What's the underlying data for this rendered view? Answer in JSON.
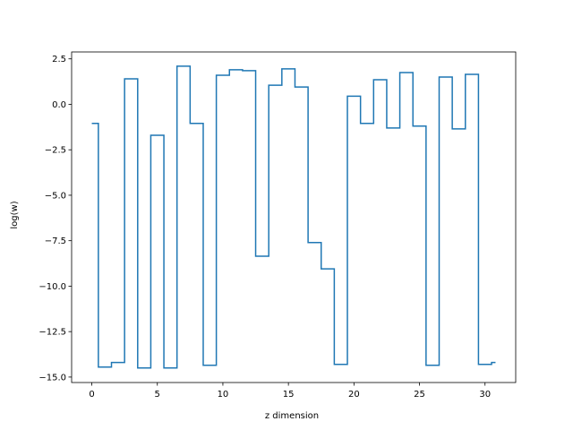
{
  "chart_data": {
    "type": "line",
    "drawstyle": "steps-post",
    "title": "",
    "xlabel": "z dimension",
    "ylabel": "log(w)",
    "xlim": [
      -1.54,
      32.34
    ],
    "ylim": [
      -15.3,
      2.88
    ],
    "grid": false,
    "line_color": "#1f77b4",
    "xticks": [
      0,
      5,
      10,
      15,
      20,
      25,
      30
    ],
    "yticks": [
      2.5,
      0.0,
      -2.5,
      -5.0,
      -7.5,
      -10.0,
      -12.5,
      -15.0
    ],
    "xtick_labels": [
      "0",
      "5",
      "10",
      "15",
      "20",
      "25",
      "30"
    ],
    "ytick_labels": [
      "2.5",
      "0.0",
      "−2.5",
      "−5.0",
      "−7.5",
      "−10.0",
      "−12.5",
      "−15.0"
    ],
    "series": [
      {
        "x": [
          0,
          0.5,
          1.5,
          2.5,
          3.5,
          4.5,
          5.5,
          6.5,
          7.5,
          8.5,
          9.5,
          10.5,
          11.5,
          12.5,
          13.5,
          14.5,
          15.5,
          16.5,
          17.5,
          18.5,
          19.5,
          20.5,
          21.5,
          22.5,
          23.5,
          24.5,
          25.5,
          26.5,
          27.5,
          28.5,
          29.5,
          30.5,
          30.8
        ],
        "y": [
          -1.05,
          -14.45,
          -14.2,
          1.4,
          -14.5,
          -1.7,
          -14.5,
          2.1,
          -1.05,
          -14.35,
          1.6,
          1.9,
          1.85,
          -8.35,
          1.05,
          1.95,
          0.95,
          -7.6,
          -9.05,
          -14.3,
          0.45,
          -1.05,
          1.35,
          -1.3,
          1.75,
          -1.2,
          -14.35,
          1.5,
          -1.35,
          1.65,
          -14.3,
          -14.2,
          -14.2
        ]
      }
    ]
  }
}
